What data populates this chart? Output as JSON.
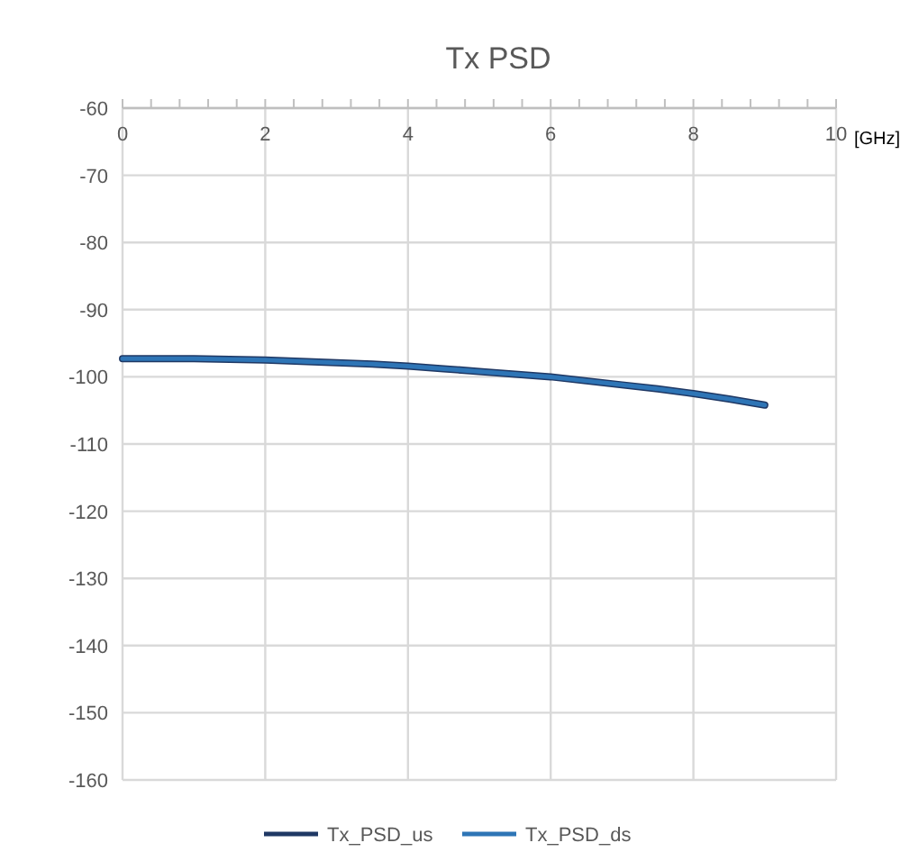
{
  "chart_data": {
    "type": "line",
    "title": "Tx PSD",
    "xlabel": "[GHz]",
    "x": [
      0,
      0.5,
      1,
      1.5,
      2,
      2.5,
      3,
      3.5,
      4,
      4.5,
      5,
      5.5,
      6,
      6.5,
      7,
      7.5,
      8,
      8.5,
      9
    ],
    "series": [
      {
        "name": "Tx_PSD_us",
        "color": "#1f3864",
        "values": [
          -97.3,
          -97.3,
          -97.3,
          -97.4,
          -97.5,
          -97.7,
          -97.9,
          -98.1,
          -98.4,
          -98.8,
          -99.2,
          -99.6,
          -100.0,
          -100.6,
          -101.2,
          -101.8,
          -102.5,
          -103.3,
          -104.2
        ]
      },
      {
        "name": "Tx_PSD_ds",
        "color": "#2e75b6",
        "values": [
          -97.3,
          -97.3,
          -97.3,
          -97.4,
          -97.5,
          -97.7,
          -97.9,
          -98.1,
          -98.4,
          -98.8,
          -99.2,
          -99.6,
          -100.0,
          -100.6,
          -101.2,
          -101.8,
          -102.5,
          -103.3,
          -104.2
        ]
      }
    ],
    "xlim": [
      0,
      10
    ],
    "xticks": [
      0,
      {
        "value": 0.4,
        "label": null
      },
      {
        "value": 0.8,
        "label": null
      },
      {
        "value": 1.2,
        "label": null
      },
      {
        "value": 1.6,
        "label": null
      },
      2,
      {
        "value": 2.4,
        "label": null
      },
      {
        "value": 2.8,
        "label": null
      },
      {
        "value": 3.2,
        "label": null
      },
      {
        "value": 3.6,
        "label": null
      },
      4,
      {
        "value": 4.4,
        "label": null
      },
      {
        "value": 4.8,
        "label": null
      },
      {
        "value": 5.2,
        "label": null
      },
      {
        "value": 5.6,
        "label": null
      },
      6,
      {
        "value": 6.4,
        "label": null
      },
      {
        "value": 6.8,
        "label": null
      },
      {
        "value": 7.2,
        "label": null
      },
      {
        "value": 7.6,
        "label": null
      },
      8,
      {
        "value": 8.4,
        "label": null
      },
      {
        "value": 8.8,
        "label": null
      },
      {
        "value": 9.2,
        "label": null
      },
      {
        "value": 9.6,
        "label": null
      },
      10
    ],
    "ylim": [
      -160,
      -60
    ],
    "yticks": [
      -60,
      -70,
      -80,
      -90,
      -100,
      -110,
      -120,
      -130,
      -140,
      -150,
      -160
    ],
    "grid": true,
    "legend": "bottom",
    "marker": "none",
    "line_style": "solid"
  }
}
